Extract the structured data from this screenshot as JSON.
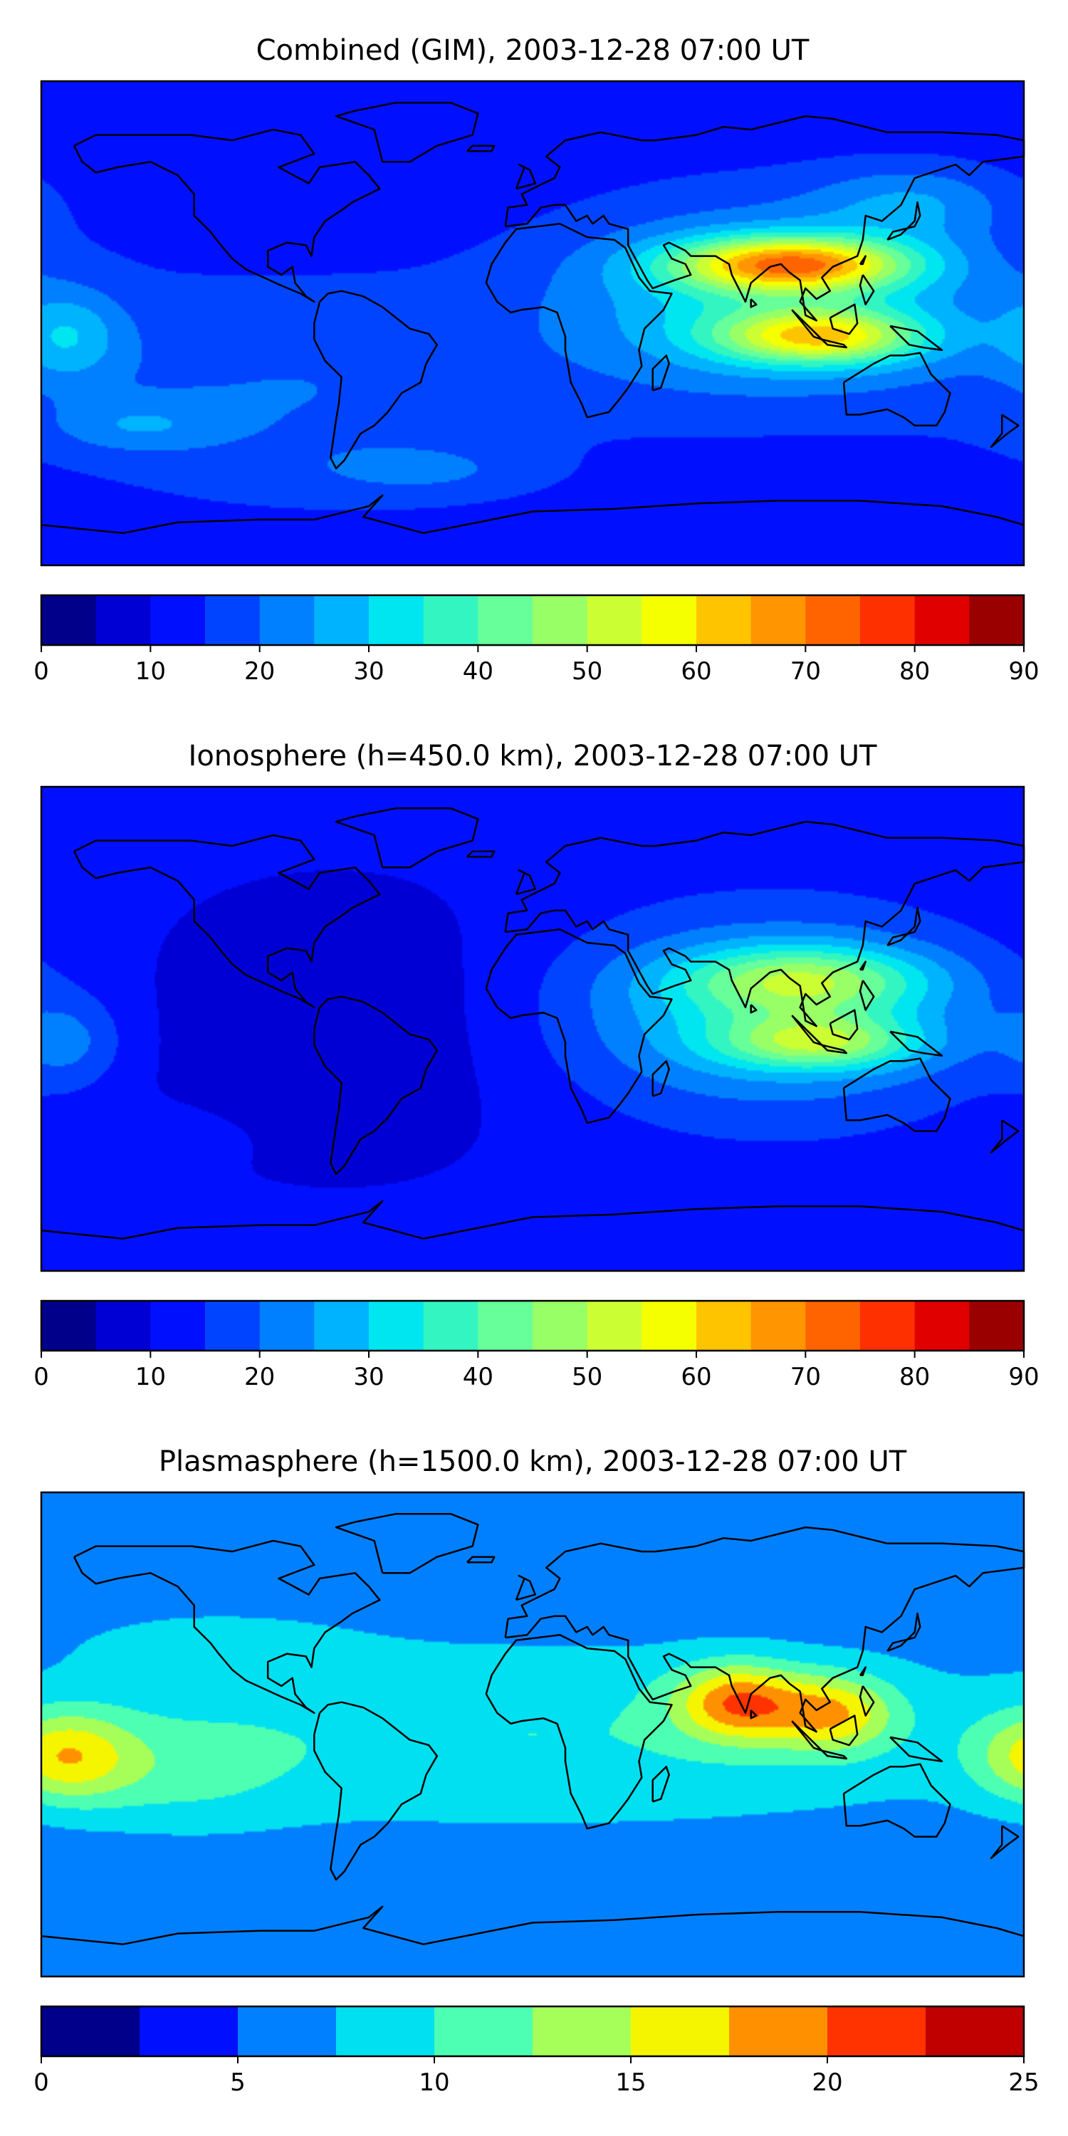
{
  "chart_data": [
    {
      "type": "heatmap",
      "title": "Combined (GIM), 2003-12-28 07:00 UT",
      "xlabel": "",
      "ylabel": "",
      "colorbar": {
        "min": 0,
        "max": 90,
        "step": 5,
        "ticks": [
          0,
          10,
          20,
          30,
          40,
          50,
          60,
          70,
          80,
          90
        ],
        "tick_labels": [
          "0",
          "10",
          "20",
          "30",
          "40",
          "50",
          "60",
          "70",
          "80",
          "90"
        ],
        "colors": [
          "#00008b",
          "#0000d5",
          "#0010ff",
          "#0044ff",
          "#0080ff",
          "#00b3ff",
          "#00e6f0",
          "#33f5c2",
          "#66ff99",
          "#99ff66",
          "#ccff33",
          "#f5ff00",
          "#ffc400",
          "#ff9500",
          "#ff6400",
          "#ff3000",
          "#e00000",
          "#9b0000"
        ]
      },
      "features": [
        {
          "lon": 95,
          "lat": 22,
          "sx": 30,
          "sy": 7,
          "value": 45
        },
        {
          "lon": 105,
          "lat": -5,
          "sx": 26,
          "sy": 7,
          "value": 35
        },
        {
          "lon": 88,
          "lat": 8,
          "sx": 55,
          "sy": 25,
          "value": 20
        },
        {
          "lon": -170,
          "lat": -5,
          "sx": 14,
          "sy": 12,
          "value": 12
        },
        {
          "lon": -145,
          "lat": -38,
          "sx": 22,
          "sy": 7,
          "value": 8
        },
        {
          "lon": -40,
          "lat": -55,
          "sx": 30,
          "sy": 7,
          "value": 6
        },
        {
          "lon": -90,
          "lat": -25,
          "sx": 70,
          "sy": 30,
          "value": 8
        },
        {
          "lon": 140,
          "lat": 45,
          "sx": 25,
          "sy": 10,
          "value": 10
        }
      ],
      "base_value": 12,
      "map_extent": {
        "lon": [
          -180,
          180
        ],
        "lat": [
          -90,
          90
        ]
      }
    },
    {
      "type": "heatmap",
      "title": "Ionosphere  (h=450.0 km), 2003-12-28 07:00 UT",
      "xlabel": "",
      "ylabel": "",
      "colorbar": {
        "min": 0,
        "max": 90,
        "step": 5,
        "ticks": [
          0,
          10,
          20,
          30,
          40,
          50,
          60,
          70,
          80,
          90
        ],
        "tick_labels": [
          "0",
          "10",
          "20",
          "30",
          "40",
          "50",
          "60",
          "70",
          "80",
          "90"
        ],
        "colors": [
          "#00008b",
          "#0000d5",
          "#0010ff",
          "#0044ff",
          "#0080ff",
          "#00b3ff",
          "#00e6f0",
          "#33f5c2",
          "#66ff99",
          "#99ff66",
          "#ccff33",
          "#f5ff00",
          "#ffc400",
          "#ff9500",
          "#ff6400",
          "#ff3000",
          "#e00000",
          "#9b0000"
        ]
      },
      "features": [
        {
          "lon": 100,
          "lat": 18,
          "sx": 32,
          "sy": 9,
          "value": 25
        },
        {
          "lon": 105,
          "lat": -5,
          "sx": 26,
          "sy": 7,
          "value": 25
        },
        {
          "lon": 85,
          "lat": 5,
          "sx": 55,
          "sy": 25,
          "value": 18
        },
        {
          "lon": -170,
          "lat": -5,
          "sx": 14,
          "sy": 12,
          "value": 9
        },
        {
          "lon": -140,
          "lat": -40,
          "sx": 22,
          "sy": 7,
          "value": 4
        },
        {
          "lon": -70,
          "lat": 0,
          "sx": 60,
          "sy": 40,
          "value": -6
        }
      ],
      "base_value": 12,
      "map_extent": {
        "lon": [
          -180,
          180
        ],
        "lat": [
          -90,
          90
        ]
      }
    },
    {
      "type": "heatmap",
      "title": "Plasmasphere (h=1500.0 km), 2003-12-28 07:00 UT",
      "xlabel": "",
      "ylabel": "",
      "colorbar": {
        "min": 0,
        "max": 25,
        "step": 2.5,
        "ticks": [
          0,
          5,
          10,
          15,
          20,
          25
        ],
        "tick_labels": [
          "0",
          "5",
          "10",
          "15",
          "20",
          "25"
        ],
        "colors": [
          "#00008b",
          "#0010ff",
          "#0080ff",
          "#00e0f0",
          "#4dffb3",
          "#a6ff59",
          "#f5f500",
          "#ff9100",
          "#ff3300",
          "#c00000"
        ]
      },
      "features": [
        {
          "lon": 75,
          "lat": 12,
          "sx": 16,
          "sy": 10,
          "value": 11
        },
        {
          "lon": 110,
          "lat": 8,
          "sx": 16,
          "sy": 10,
          "value": 9
        },
        {
          "lon": -172,
          "lat": -8,
          "sx": 18,
          "sy": 12,
          "value": 9
        },
        {
          "lon": -130,
          "lat": -15,
          "sx": 30,
          "sy": 15,
          "value": 3
        },
        {
          "lon": 0,
          "lat": 0,
          "sx": 160,
          "sy": 28,
          "value": 5
        },
        {
          "lon": -120,
          "lat": 35,
          "sx": 40,
          "sy": 10,
          "value": 2
        }
      ],
      "base_value": 5,
      "map_extent": {
        "lon": [
          -180,
          180
        ],
        "lat": [
          -90,
          90
        ]
      }
    }
  ],
  "colors": {
    "background": "#ffffff",
    "coastline": "#000000",
    "frame": "#000000"
  }
}
